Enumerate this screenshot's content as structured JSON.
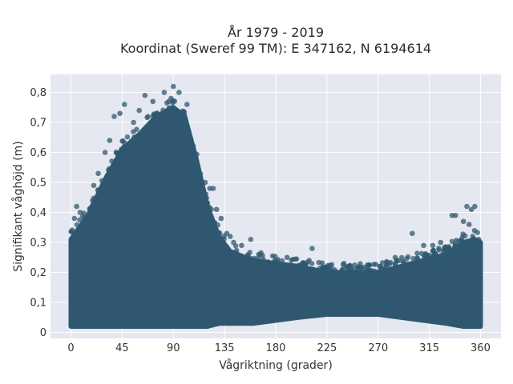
{
  "chart_data": {
    "type": "scatter",
    "title": "År 1979 - 2019",
    "subtitle": "Koordinat (Sweref 99 TM): E 347162, N 6194614",
    "xlabel": "Vågriktning (grader)",
    "ylabel": "Signifikant våghöjd (m)",
    "xlim": [
      -18,
      378
    ],
    "ylim": [
      -0.02,
      0.86
    ],
    "x_ticks": [
      0,
      45,
      90,
      135,
      180,
      225,
      270,
      315,
      360
    ],
    "x_tick_labels": [
      "0",
      "45",
      "90",
      "135",
      "180",
      "225",
      "270",
      "315",
      "360"
    ],
    "y_ticks": [
      0,
      0.1,
      0.2,
      0.3,
      0.4,
      0.5,
      0.6,
      0.7,
      0.8
    ],
    "y_tick_labels": [
      "0",
      "0,1",
      "0,2",
      "0,3",
      "0,4",
      "0,5",
      "0,6",
      "0,7",
      "0,8"
    ],
    "grid": true,
    "marker_color": "#2f5870",
    "background_color": "#e5e8f0",
    "envelope": {
      "x": [
        0,
        15,
        30,
        45,
        60,
        75,
        90,
        100,
        110,
        120,
        130,
        140,
        160,
        180,
        200,
        225,
        250,
        270,
        290,
        310,
        330,
        345,
        355,
        360
      ],
      "upper": [
        0.31,
        0.39,
        0.51,
        0.61,
        0.66,
        0.72,
        0.75,
        0.72,
        0.58,
        0.42,
        0.32,
        0.27,
        0.24,
        0.23,
        0.22,
        0.2,
        0.2,
        0.2,
        0.22,
        0.24,
        0.26,
        0.3,
        0.31,
        0.3
      ],
      "lower": [
        0.02,
        0.02,
        0.02,
        0.02,
        0.02,
        0.02,
        0.02,
        0.02,
        0.02,
        0.02,
        0.03,
        0.03,
        0.03,
        0.04,
        0.05,
        0.06,
        0.06,
        0.06,
        0.05,
        0.04,
        0.03,
        0.02,
        0.02,
        0.02
      ]
    },
    "outliers": [
      {
        "x": 90,
        "y": 0.82
      },
      {
        "x": 82,
        "y": 0.8
      },
      {
        "x": 95,
        "y": 0.8
      },
      {
        "x": 88,
        "y": 0.78
      },
      {
        "x": 65,
        "y": 0.79
      },
      {
        "x": 72,
        "y": 0.77
      },
      {
        "x": 47,
        "y": 0.76
      },
      {
        "x": 102,
        "y": 0.76
      },
      {
        "x": 38,
        "y": 0.72
      },
      {
        "x": 43,
        "y": 0.73
      },
      {
        "x": 55,
        "y": 0.7
      },
      {
        "x": 60,
        "y": 0.74
      },
      {
        "x": 34,
        "y": 0.64
      },
      {
        "x": 30,
        "y": 0.6
      },
      {
        "x": 24,
        "y": 0.53
      },
      {
        "x": 20,
        "y": 0.49
      },
      {
        "x": 118,
        "y": 0.5
      },
      {
        "x": 122,
        "y": 0.48
      },
      {
        "x": 125,
        "y": 0.48
      },
      {
        "x": 128,
        "y": 0.41
      },
      {
        "x": 132,
        "y": 0.38
      },
      {
        "x": 137,
        "y": 0.33
      },
      {
        "x": 140,
        "y": 0.32
      },
      {
        "x": 143,
        "y": 0.3
      },
      {
        "x": 150,
        "y": 0.29
      },
      {
        "x": 158,
        "y": 0.31
      },
      {
        "x": 165,
        "y": 0.26
      },
      {
        "x": 190,
        "y": 0.25
      },
      {
        "x": 212,
        "y": 0.28
      },
      {
        "x": 240,
        "y": 0.23
      },
      {
        "x": 285,
        "y": 0.25
      },
      {
        "x": 300,
        "y": 0.33
      },
      {
        "x": 310,
        "y": 0.29
      },
      {
        "x": 318,
        "y": 0.29
      },
      {
        "x": 325,
        "y": 0.3
      },
      {
        "x": 335,
        "y": 0.39
      },
      {
        "x": 338,
        "y": 0.39
      },
      {
        "x": 348,
        "y": 0.42
      },
      {
        "x": 352,
        "y": 0.41
      },
      {
        "x": 355,
        "y": 0.42
      },
      {
        "x": 345,
        "y": 0.37
      },
      {
        "x": 350,
        "y": 0.36
      },
      {
        "x": 5,
        "y": 0.42
      },
      {
        "x": 8,
        "y": 0.4
      },
      {
        "x": 3,
        "y": 0.38
      }
    ]
  }
}
